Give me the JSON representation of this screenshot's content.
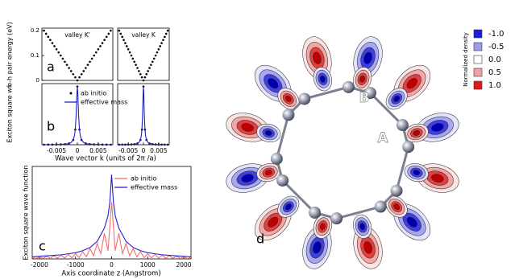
{
  "chart_data": [
    {
      "type": "scatter",
      "label": "a",
      "ylabel": "e-h pair energy  (eV)",
      "annotation": "valley K'",
      "color": "#000000",
      "x": [
        -0.008,
        -0.0075,
        -0.007,
        -0.0065,
        -0.006,
        -0.0055,
        -0.005,
        -0.0045,
        -0.004,
        -0.0035,
        -0.003,
        -0.0025,
        -0.002,
        -0.0015,
        -0.001,
        -0.0005,
        0,
        0.0005,
        0.001,
        0.0015,
        0.002,
        0.0025,
        0.003,
        0.0035,
        0.004,
        0.0045,
        0.005,
        0.0055,
        0.006,
        0.0065,
        0.007,
        0.0075,
        0.008
      ],
      "values": [
        0.2,
        0.1875,
        0.175,
        0.1625,
        0.15,
        0.1375,
        0.125,
        0.1125,
        0.1,
        0.0875,
        0.075,
        0.0625,
        0.05,
        0.0375,
        0.025,
        0.0125,
        0,
        0.0125,
        0.025,
        0.0375,
        0.05,
        0.0625,
        0.075,
        0.0875,
        0.1,
        0.1125,
        0.125,
        0.1375,
        0.15,
        0.1625,
        0.175,
        0.1875,
        0.2
      ],
      "xlim": [
        -0.0085,
        0.0085
      ],
      "ylim": [
        0,
        0.21
      ],
      "yticks": [
        0,
        0.1,
        0.2
      ]
    },
    {
      "type": "scatter",
      "annotation": "valley K",
      "color": "#000000",
      "x": [
        -0.008,
        -0.0075,
        -0.007,
        -0.0065,
        -0.006,
        -0.0055,
        -0.005,
        -0.0045,
        -0.004,
        -0.0035,
        -0.003,
        -0.0025,
        -0.002,
        -0.0015,
        -0.001,
        -0.0005,
        0,
        0.0005,
        0.001,
        0.0015,
        0.002,
        0.0025,
        0.003,
        0.0035,
        0.004,
        0.0045,
        0.005,
        0.0055,
        0.006,
        0.0065,
        0.007,
        0.0075,
        0.008
      ],
      "values": [
        0.2,
        0.1875,
        0.175,
        0.1625,
        0.15,
        0.1375,
        0.125,
        0.1125,
        0.1,
        0.0875,
        0.075,
        0.0625,
        0.05,
        0.0375,
        0.025,
        0.0125,
        0,
        0.0125,
        0.025,
        0.0375,
        0.05,
        0.0625,
        0.075,
        0.0875,
        0.1,
        0.1125,
        0.125,
        0.1375,
        0.15,
        0.1625,
        0.175,
        0.1875,
        0.2
      ],
      "xlim": [
        -0.0085,
        0.0085
      ],
      "ylim": [
        0,
        0.21
      ]
    },
    {
      "type": "line",
      "label": "b",
      "ylabel": "Exciton square wf",
      "xlabel": "Wave vector k  (units of 2π /a)",
      "series": [
        {
          "name": "ab initio",
          "color": "#000000",
          "marker": "dot",
          "x": [
            -0.008,
            -0.007,
            -0.006,
            -0.005,
            -0.004,
            -0.003,
            -0.002,
            -0.001,
            -0.0005,
            0,
            0.0005,
            0.001,
            0.002,
            0.003,
            0.004,
            0.005,
            0.006,
            0.007,
            0.008
          ],
          "values": [
            0.001,
            0.002,
            0.002,
            0.004,
            0.006,
            0.01,
            0.022,
            0.083,
            0.26,
            1,
            0.26,
            0.083,
            0.022,
            0.01,
            0.006,
            0.004,
            0.002,
            0.002,
            0.001
          ]
        },
        {
          "name": "effective mass",
          "color": "#2020d0",
          "x": [
            -0.0085,
            -0.006,
            -0.004,
            -0.003,
            -0.002,
            -0.0015,
            -0.001,
            -0.0007,
            -0.0005,
            -0.0003,
            -0.0002,
            -0.0001,
            0,
            0.0001,
            0.0002,
            0.0003,
            0.0005,
            0.0007,
            0.001,
            0.0015,
            0.002,
            0.003,
            0.004,
            0.006,
            0.0085
          ],
          "values": [
            0.001,
            0.0025,
            0.0056,
            0.0099,
            0.022,
            0.038,
            0.083,
            0.155,
            0.265,
            0.5,
            0.69,
            0.9,
            1,
            0.9,
            0.69,
            0.5,
            0.265,
            0.155,
            0.083,
            0.038,
            0.022,
            0.0099,
            0.0056,
            0.0025,
            0.001
          ]
        }
      ],
      "xlim": [
        -0.0085,
        0.0085
      ],
      "ylim": [
        0,
        1.05
      ],
      "xticks": [
        -0.005,
        0,
        0.005
      ]
    },
    {
      "type": "line",
      "series": [
        {
          "color": "#000000",
          "marker": "dot",
          "x": [
            -0.008,
            -0.007,
            -0.006,
            -0.005,
            -0.004,
            -0.003,
            -0.002,
            -0.001,
            -0.0005,
            0,
            0.0005,
            0.001,
            0.002,
            0.003,
            0.004,
            0.005,
            0.006,
            0.007,
            0.008
          ],
          "values": [
            0.001,
            0.002,
            0.002,
            0.004,
            0.006,
            0.01,
            0.022,
            0.083,
            0.26,
            1,
            0.26,
            0.083,
            0.022,
            0.01,
            0.006,
            0.004,
            0.002,
            0.002,
            0.001
          ]
        },
        {
          "color": "#2020d0",
          "x": [
            -0.0085,
            -0.006,
            -0.004,
            -0.003,
            -0.002,
            -0.0015,
            -0.001,
            -0.0007,
            -0.0005,
            -0.0003,
            -0.0002,
            -0.0001,
            0,
            0.0001,
            0.0002,
            0.0003,
            0.0005,
            0.0007,
            0.001,
            0.0015,
            0.002,
            0.003,
            0.004,
            0.006,
            0.0085
          ],
          "values": [
            0.001,
            0.0025,
            0.0056,
            0.0099,
            0.022,
            0.038,
            0.083,
            0.155,
            0.265,
            0.5,
            0.69,
            0.9,
            1,
            0.9,
            0.69,
            0.5,
            0.265,
            0.155,
            0.083,
            0.038,
            0.022,
            0.0099,
            0.0056,
            0.0025,
            0.001
          ]
        }
      ],
      "xlim": [
        -0.0085,
        0.0085
      ],
      "ylim": [
        0,
        1.05
      ],
      "xticks": [
        -0.005,
        0,
        0.005
      ]
    },
    {
      "type": "line",
      "label": "c",
      "ylabel": "Exciton square wave function",
      "xlabel": "Axis coordinate z  (Angstrom)",
      "series": [
        {
          "name": "ab initio",
          "color": "#f07070",
          "x": [
            -2200,
            -2100,
            -2000,
            -1900,
            -1800,
            -1700,
            -1600,
            -1500,
            -1400,
            -1300,
            -1200,
            -1100,
            -1000,
            -900,
            -800,
            -700,
            -600,
            -500,
            -400,
            -300,
            -200,
            -100,
            0,
            100,
            200,
            300,
            400,
            500,
            600,
            700,
            800,
            900,
            1000,
            1100,
            1200,
            1300,
            1400,
            1500,
            1600,
            1700,
            1800,
            1900,
            2000,
            2100,
            2200
          ],
          "values": [
            0.015,
            0.004,
            0.02,
            0.005,
            0.025,
            0.006,
            0.03,
            0.007,
            0.036,
            0.008,
            0.043,
            0.01,
            0.05,
            0.012,
            0.07,
            0.02,
            0.1,
            0.03,
            0.15,
            0.05,
            0.25,
            0.08,
            0.55,
            0.08,
            0.25,
            0.05,
            0.15,
            0.03,
            0.1,
            0.02,
            0.07,
            0.012,
            0.05,
            0.01,
            0.043,
            0.008,
            0.036,
            0.007,
            0.03,
            0.006,
            0.025,
            0.005,
            0.02,
            0.004,
            0.015
          ]
        },
        {
          "name": "effective mass",
          "color": "#2020d0",
          "x": [
            -2200,
            -2000,
            -1800,
            -1600,
            -1400,
            -1200,
            -1000,
            -800,
            -600,
            -400,
            -200,
            -100,
            -50,
            0,
            50,
            100,
            200,
            400,
            600,
            800,
            1000,
            1200,
            1400,
            1600,
            1800,
            2000,
            2200
          ],
          "values": [
            0.02,
            0.025,
            0.03,
            0.035,
            0.04,
            0.05,
            0.06,
            0.08,
            0.11,
            0.17,
            0.3,
            0.42,
            0.55,
            0.82,
            0.55,
            0.42,
            0.3,
            0.17,
            0.11,
            0.08,
            0.06,
            0.05,
            0.04,
            0.035,
            0.03,
            0.025,
            0.02
          ]
        }
      ],
      "xlim": [
        -2200,
        2200
      ],
      "ylim": [
        0,
        0.9
      ],
      "xticks": [
        -2000,
        -1000,
        0,
        1000,
        2000
      ]
    },
    {
      "type": "colorbar",
      "title": "Normalized density",
      "label": "d",
      "annotations": [
        "A",
        "B"
      ],
      "ticks": [
        {
          "value": -1,
          "label": "-1.0"
        },
        {
          "value": -0.5,
          "label": "-0.5"
        },
        {
          "value": 0,
          "label": "0.0"
        },
        {
          "value": 0.5,
          "label": "0.5"
        },
        {
          "value": 1,
          "label": "1.0"
        }
      ],
      "colors": [
        "#1a1ae0",
        "#9c9ce8",
        "#ffffff",
        "#f0a0a0",
        "#e01818"
      ]
    }
  ]
}
